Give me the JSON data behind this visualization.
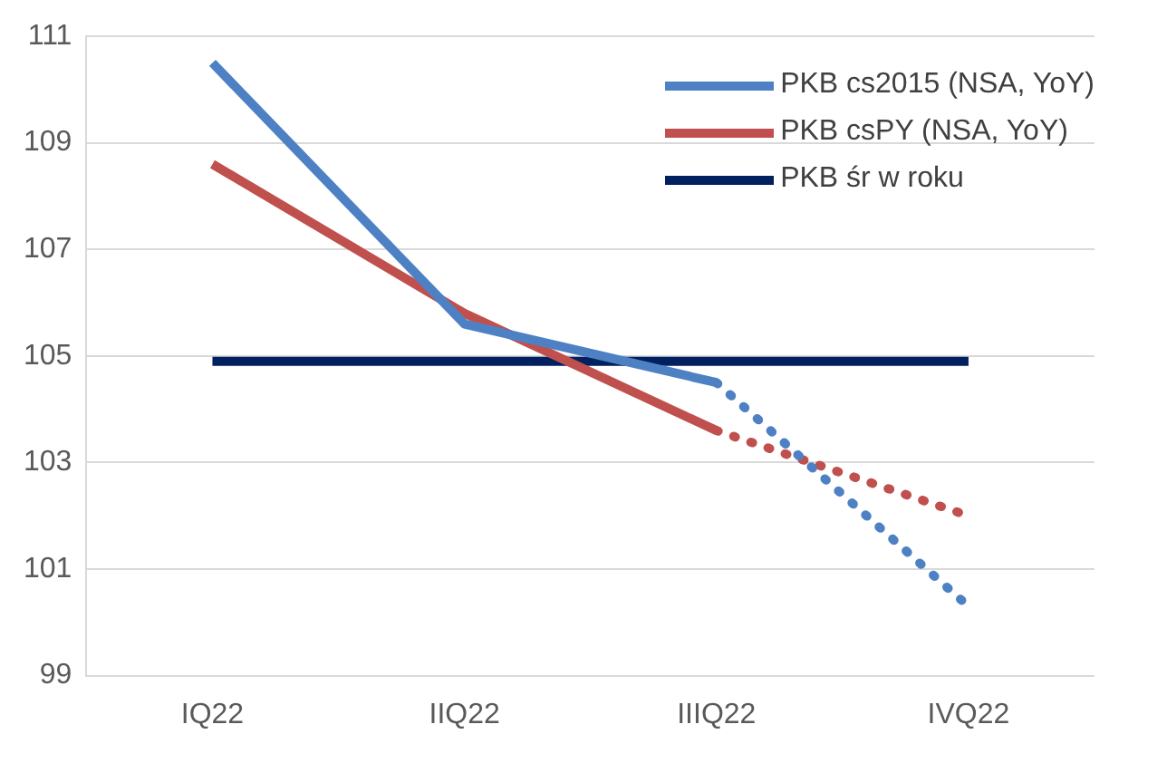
{
  "chart_data": {
    "type": "line",
    "categories": [
      "IQ22",
      "IIQ22",
      "IIIQ22",
      "IVQ22"
    ],
    "series": [
      {
        "name": "PKB cs2015 (NSA, YoY)",
        "color": "#4e81c4",
        "values": [
          110.5,
          105.6,
          104.5,
          null
        ]
      },
      {
        "name": "PKB csPY (NSA, YoY)",
        "color": "#c0504d",
        "values": [
          108.6,
          105.8,
          103.6,
          null
        ]
      },
      {
        "name": "PKB śr w roku",
        "color": "#002060",
        "values": [
          104.9,
          104.9,
          104.9,
          104.9
        ]
      },
      {
        "color": "#4e81c4",
        "line_style": "dotted",
        "values": [
          null,
          null,
          104.5,
          100.3
        ]
      },
      {
        "color": "#c0504d",
        "line_style": "dotted",
        "values": [
          null,
          null,
          103.6,
          102.0
        ]
      }
    ],
    "ylim": [
      99,
      111
    ],
    "yticks": [
      99,
      101,
      103,
      105,
      107,
      109,
      111
    ],
    "grid": "y",
    "legend": "top right",
    "marker": "none"
  }
}
